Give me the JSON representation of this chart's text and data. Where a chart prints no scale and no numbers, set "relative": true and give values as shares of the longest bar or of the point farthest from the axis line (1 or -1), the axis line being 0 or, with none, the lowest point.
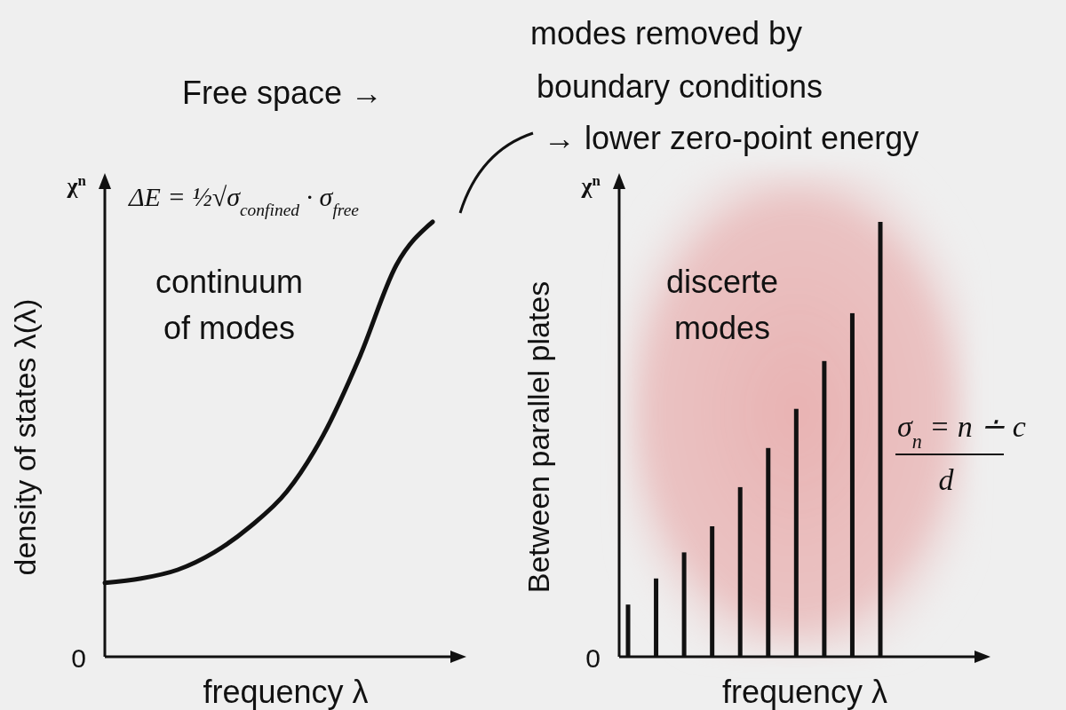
{
  "chart_data": [
    {
      "type": "line",
      "relative": true,
      "xlabel": "frequency λ",
      "ylabel": "density of states λ(λ)",
      "categories": [
        null,
        null,
        null,
        null,
        null,
        null,
        null,
        null,
        null,
        null
      ],
      "color": "#111111",
      "values": [
        0.17,
        0.18,
        0.2,
        0.24,
        0.3,
        0.38,
        0.51,
        0.69,
        0.9,
        1.0
      ],
      "annotations": [
        "χ$^{n}$",
        "0",
        "continuum",
        "of modes",
        "ΔE = ½√σ$_{confined}$ · σ$_{free}$",
        "Free space →"
      ]
    },
    {
      "type": "bar",
      "relative": true,
      "xlabel": "frequency λ",
      "ylabel": "Between parallel plates",
      "categories": [
        null,
        null,
        null,
        null,
        null,
        null,
        null,
        null,
        null,
        null
      ],
      "color": "#111111",
      "values": [
        0.12,
        0.18,
        0.24,
        0.3,
        0.39,
        0.48,
        0.57,
        0.68,
        0.79,
        1.0
      ],
      "annotations": [
        "χ$^{n}$",
        "0",
        "discerte",
        "modes",
        "modes removed by",
        "boundary conditions",
        "→ lower zero-point energy",
        "σ$_{n}$ = n ∸ c",
        "d"
      ]
    }
  ]
}
